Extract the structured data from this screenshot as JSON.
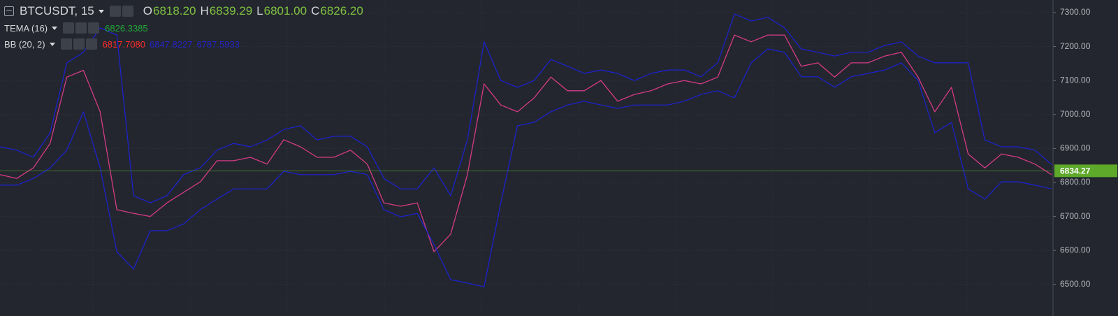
{
  "chart_data": {
    "type": "line",
    "title": "BTCUSDT, 15",
    "ohlc": [
      {
        "key": "O",
        "value": {
          "value": 6818.2,
          "label": "6818.20"
        }
      },
      {
        "key": "H",
        "value": {
          "value": 6839.29,
          "label": "6839.29"
        }
      },
      {
        "key": "L",
        "value": {
          "value": 6801,
          "label": "6801.00"
        }
      },
      {
        "key": "C",
        "value": {
          "value": 6826.2,
          "label": "6826.20"
        }
      }
    ],
    "indicators": [
      {
        "name": "TEMA (16)",
        "readouts": [
          {
            "value": 6826.3385,
            "color": "#22a83a"
          }
        ]
      },
      {
        "name": "BB (20, 2)",
        "readouts": [
          {
            "value": {
              "value": 6817.708,
              "label": "6817.7080"
            },
            "color": "#ff2b2b"
          },
          {
            "value": 6847.8227,
            "color": "#2424c8"
          },
          {
            "value": 6787.5933,
            "color": "#2424c8"
          }
        ]
      }
    ],
    "last_price": 6834.27,
    "last_price_color": "#5ea82a",
    "ylim": [
      6407,
      7337
    ],
    "yticks": [
      {
        "value": 6500,
        "label": "6500.00"
      },
      {
        "value": 6600,
        "label": "6600.00"
      },
      {
        "value": 6700,
        "label": "6700.00"
      },
      {
        "value": 6800,
        "label": "6800.00"
      },
      {
        "value": 6900,
        "label": "6900.00"
      },
      {
        "value": 7000,
        "label": "7000.00"
      },
      {
        "value": 7100,
        "label": "7100.00"
      },
      {
        "value": 7200,
        "label": "7200.00"
      },
      {
        "value": 7300,
        "label": "7300.00"
      }
    ],
    "grid": true,
    "series": [
      {
        "color": "#d63a86",
        "values": [
          6823,
          6812,
          6843,
          6915,
          7110,
          7130,
          7008,
          6720,
          6709,
          6700,
          6740,
          6771,
          6802,
          6864,
          6864,
          6874,
          6854,
          6926,
          6905,
          6874,
          6874,
          6895,
          6854,
          6740,
          6730,
          6740,
          6596,
          6648,
          6823,
          7090,
          7028,
          7008,
          7049,
          7110,
          7070,
          7070,
          7100,
          7039,
          7059,
          7070,
          7090,
          7100,
          7090,
          7110,
          7234,
          7214,
          7234,
          7234,
          7142,
          7152,
          7110,
          7152,
          7152,
          7172,
          7183,
          7110,
          7008,
          7080,
          6884,
          6843,
          6884,
          6874,
          6854,
          6823
        ]
      },
      {
        "color": "#1c22d6",
        "values": [
          6905,
          6895,
          6874,
          6946,
          7152,
          7183,
          7255,
          7234,
          6761,
          6740,
          6761,
          6823,
          6843,
          6895,
          6915,
          6905,
          6925,
          6956,
          6967,
          6925,
          6936,
          6936,
          6905,
          6812,
          6781,
          6781,
          6843,
          6761,
          6925,
          7214,
          7100,
          7080,
          7100,
          7162,
          7142,
          7121,
          7131,
          7121,
          7100,
          7121,
          7131,
          7131,
          7111,
          7152,
          7296,
          7275,
          7286,
          7255,
          7193,
          7183,
          7172,
          7183,
          7183,
          7203,
          7214,
          7172,
          7152,
          7152,
          7152,
          6925,
          6905,
          6905,
          6895,
          6853
        ]
      },
      {
        "color": "#1c22d6",
        "values": [
          6792,
          6792,
          6812,
          6843,
          6895,
          7008,
          6843,
          6596,
          6545,
          6658,
          6658,
          6678,
          6720,
          6751,
          6781,
          6781,
          6781,
          6833,
          6823,
          6823,
          6823,
          6833,
          6823,
          6720,
          6699,
          6709,
          6617,
          6514,
          6504,
          6493,
          6740,
          6967,
          6977,
          7008,
          7028,
          7039,
          7028,
          7018,
          7028,
          7028,
          7028,
          7039,
          7059,
          7070,
          7049,
          7152,
          7193,
          7183,
          7111,
          7111,
          7080,
          7111,
          7121,
          7131,
          7152,
          7100,
          6946,
          6977,
          6781,
          6751,
          6802,
          6802,
          6792,
          6781
        ]
      }
    ]
  }
}
